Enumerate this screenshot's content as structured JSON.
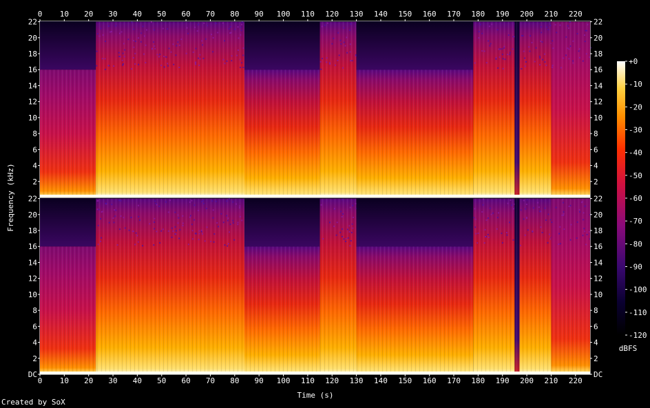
{
  "chart_data": {
    "type": "heatmap",
    "title": "",
    "xlabel": "Time (s)",
    "ylabel": "Frequency (kHz)",
    "colorbar_label": "dBFS",
    "xlim": [
      0,
      226
    ],
    "ylim_khz": [
      0,
      22.05
    ],
    "x_ticks": [
      "0",
      "10",
      "20",
      "30",
      "40",
      "50",
      "60",
      "70",
      "80",
      "90",
      "100",
      "110",
      "120",
      "130",
      "140",
      "150",
      "160",
      "170",
      "180",
      "190",
      "200",
      "210",
      "220"
    ],
    "y_ticks": [
      "DC",
      "2",
      "4",
      "6",
      "8",
      "10",
      "12",
      "14",
      "16",
      "18",
      "20",
      "22"
    ],
    "y_ticks_top_channel": [
      "2",
      "4",
      "6",
      "8",
      "10",
      "12",
      "14",
      "16",
      "18",
      "20",
      "22"
    ],
    "colorbar_ticks": [
      "+0",
      "-10",
      "-20",
      "-30",
      "-40",
      "-50",
      "-60",
      "-70",
      "-80",
      "-90",
      "-100",
      "-110",
      "-120"
    ],
    "colorbar_range_db": [
      -120,
      0
    ],
    "channels": 2,
    "segments": [
      {
        "start": 0,
        "end": 23,
        "cutoff_khz": 16,
        "level": "mid"
      },
      {
        "start": 23,
        "end": 69,
        "cutoff_khz": 22,
        "level": "high"
      },
      {
        "start": 69,
        "end": 84,
        "cutoff_khz": 22,
        "level": "high"
      },
      {
        "start": 84,
        "end": 115,
        "cutoff_khz": 16,
        "level": "high"
      },
      {
        "start": 115,
        "end": 130,
        "cutoff_khz": 22,
        "level": "high"
      },
      {
        "start": 130,
        "end": 178,
        "cutoff_khz": 16,
        "level": "high"
      },
      {
        "start": 178,
        "end": 195,
        "cutoff_khz": 22,
        "level": "high"
      },
      {
        "start": 195,
        "end": 197,
        "cutoff_khz": 22,
        "level": "low"
      },
      {
        "start": 197,
        "end": 210,
        "cutoff_khz": 22,
        "level": "high"
      },
      {
        "start": 210,
        "end": 226,
        "cutoff_khz": 22,
        "level": "mid"
      }
    ],
    "colors": {
      "low": "#0a0020",
      "mid_low": "#5a0a7a",
      "mid": "#c0105a",
      "mid_high": "#e83010",
      "high": "#ff9a00",
      "peak": "#ffffd0"
    }
  },
  "credit": "Created by SoX"
}
